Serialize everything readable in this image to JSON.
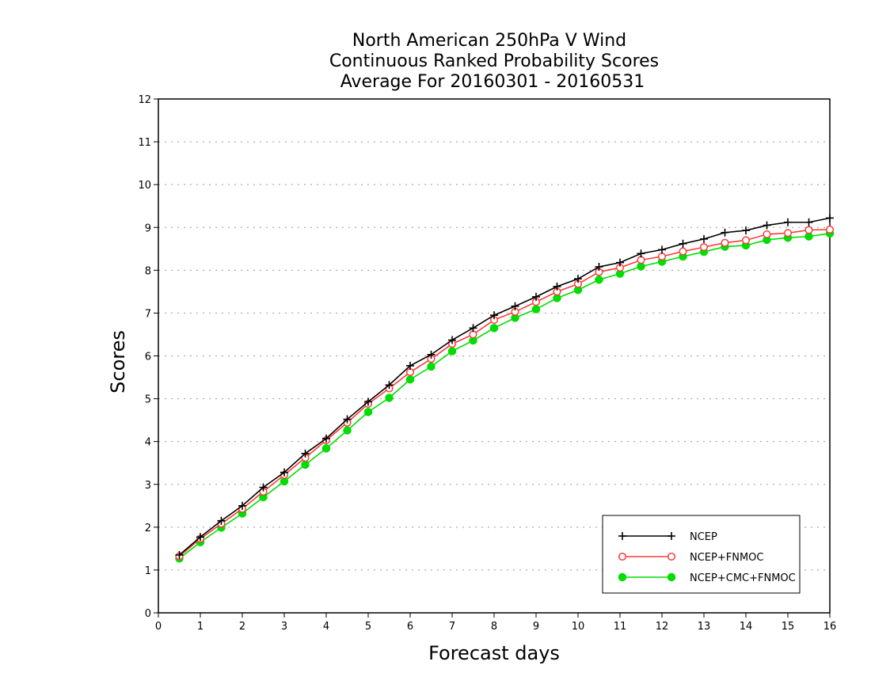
{
  "chart_data": {
    "type": "line",
    "title_lines": [
      "North American 250hPa V Wind",
      "Continuous Ranked Probability Scores",
      "Average For 20160301 - 20160531"
    ],
    "xlabel": "Forecast days",
    "ylabel": "Scores",
    "xlim": [
      0,
      16
    ],
    "ylim": [
      0,
      12
    ],
    "x_ticks": [
      "0",
      "1",
      "2",
      "3",
      "4",
      "5",
      "6",
      "7",
      "8",
      "9",
      "10",
      "11",
      "12",
      "13",
      "14",
      "15",
      "16"
    ],
    "y_ticks": [
      "0",
      "1",
      "2",
      "3",
      "4",
      "5",
      "6",
      "7",
      "8",
      "9",
      "10",
      "11",
      "12"
    ],
    "grid": "horizontal dotted",
    "legend_position": "lower-right",
    "x": [
      0.5,
      1,
      1.5,
      2,
      2.5,
      3,
      3.5,
      4,
      4.5,
      5,
      5.5,
      6,
      6.5,
      7,
      7.5,
      8,
      8.5,
      9,
      9.5,
      10,
      10.5,
      11,
      11.5,
      12,
      12.5,
      13,
      13.5,
      14,
      14.5,
      15,
      15.5,
      16
    ],
    "series": [
      {
        "name": "NCEP",
        "color": "#000000",
        "marker": "plus",
        "values": [
          1.35,
          1.77,
          2.15,
          2.5,
          2.93,
          3.28,
          3.72,
          4.07,
          4.52,
          4.93,
          5.32,
          5.77,
          6.03,
          6.37,
          6.65,
          6.95,
          7.16,
          7.38,
          7.62,
          7.8,
          8.08,
          8.18,
          8.39,
          8.48,
          8.62,
          8.73,
          8.88,
          8.93,
          9.05,
          9.12,
          9.12,
          9.22
        ]
      },
      {
        "name": "NCEP+FNMOC",
        "color": "#ff3b3b",
        "marker": "open-circle",
        "values": [
          1.32,
          1.73,
          2.08,
          2.43,
          2.83,
          3.22,
          3.62,
          4.03,
          4.44,
          4.88,
          5.24,
          5.62,
          5.93,
          6.28,
          6.5,
          6.84,
          7.03,
          7.26,
          7.5,
          7.68,
          7.96,
          8.06,
          8.24,
          8.32,
          8.44,
          8.54,
          8.64,
          8.7,
          8.84,
          8.87,
          8.94,
          8.95
        ]
      },
      {
        "name": "NCEP+CMC+FNMOC",
        "color": "#00dd00",
        "marker": "filled-circle",
        "values": [
          1.27,
          1.65,
          1.99,
          2.32,
          2.7,
          3.07,
          3.46,
          3.84,
          4.26,
          4.69,
          5.02,
          5.45,
          5.75,
          6.11,
          6.36,
          6.65,
          6.89,
          7.09,
          7.35,
          7.54,
          7.78,
          7.92,
          8.09,
          8.2,
          8.32,
          8.43,
          8.55,
          8.58,
          8.71,
          8.76,
          8.79,
          8.86
        ]
      }
    ]
  }
}
